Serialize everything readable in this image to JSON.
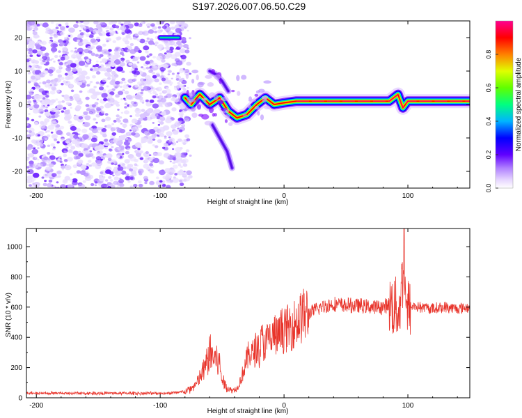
{
  "title": "S197.2026.007.06.50.C29",
  "chart_data": [
    {
      "type": "heatmap",
      "name": "spectrogram",
      "xlabel": "Height of straight line (km)",
      "ylabel": "Frequency (Hz)",
      "xlim": [
        -208,
        150
      ],
      "ylim": [
        -25,
        25
      ],
      "xticks": [
        -200,
        -100,
        0,
        100
      ],
      "yticks": [
        -20,
        -10,
        0,
        10,
        20
      ],
      "colorbar": {
        "label": "Normalized spectral amplitude",
        "range": [
          0,
          1
        ],
        "ticks": [
          "0.0",
          "0.2",
          "0.4",
          "0.6",
          "0.8"
        ],
        "colors": [
          "#ffffff",
          "#d4b3ff",
          "#7a00ff",
          "#0000ff",
          "#00c8ff",
          "#00ff60",
          "#c8ff00",
          "#ff9000",
          "#ff0000",
          "#ff0090"
        ]
      },
      "features": {
        "noise_region_x": [
          -208,
          -80
        ],
        "signal_track": [
          [
            -80,
            2
          ],
          [
            -75,
            0
          ],
          [
            -68,
            3
          ],
          [
            -60,
            0
          ],
          [
            -52,
            2
          ],
          [
            -45,
            -2
          ],
          [
            -38,
            -4
          ],
          [
            -30,
            -3
          ],
          [
            -22,
            0
          ],
          [
            -15,
            2
          ],
          [
            -8,
            0
          ],
          [
            0,
            0.5
          ],
          [
            10,
            1
          ],
          [
            30,
            1
          ],
          [
            60,
            1
          ],
          [
            85,
            1
          ],
          [
            92,
            3
          ],
          [
            96,
            -1
          ],
          [
            100,
            1
          ],
          [
            120,
            1
          ],
          [
            150,
            1
          ]
        ],
        "secondary_tracks": [
          [
            [
              -60,
              10
            ],
            [
              -55,
              9
            ],
            [
              -50,
              7
            ],
            [
              -45,
              4
            ]
          ],
          [
            [
              -58,
              -6
            ],
            [
              -52,
              -10
            ],
            [
              -46,
              -14
            ],
            [
              -42,
              -19
            ]
          ],
          [
            [
              -100,
              20
            ],
            [
              -85,
              20
            ]
          ]
        ]
      }
    },
    {
      "type": "line",
      "name": "snr",
      "xlabel": "Height of straight line (km)",
      "ylabel": "SNR (10 * v/v)",
      "xlim": [
        -208,
        150
      ],
      "ylim": [
        0,
        1120
      ],
      "xticks": [
        -200,
        -100,
        0,
        100
      ],
      "yticks": [
        0,
        200,
        400,
        600,
        800,
        1000
      ],
      "color": "#e8332a",
      "series": [
        {
          "name": "SNR",
          "x": [
            -208,
            -180,
            -150,
            -120,
            -100,
            -90,
            -80,
            -75,
            -70,
            -65,
            -62,
            -60,
            -58,
            -55,
            -52,
            -50,
            -48,
            -45,
            -42,
            -40,
            -38,
            -35,
            -32,
            -30,
            -28,
            -25,
            -22,
            -20,
            -18,
            -15,
            -12,
            -10,
            -8,
            -5,
            -2,
            0,
            5,
            10,
            15,
            20,
            25,
            30,
            40,
            50,
            60,
            70,
            80,
            85,
            90,
            93,
            95,
            96,
            97,
            98,
            99,
            100,
            102,
            105,
            110,
            120,
            130,
            140,
            150
          ],
          "y": [
            30,
            30,
            30,
            30,
            30,
            32,
            40,
            60,
            100,
            180,
            240,
            300,
            280,
            250,
            220,
            120,
            90,
            60,
            50,
            55,
            60,
            120,
            200,
            250,
            300,
            290,
            340,
            310,
            380,
            350,
            400,
            370,
            430,
            390,
            450,
            440,
            470,
            500,
            540,
            560,
            580,
            600,
            620,
            610,
            610,
            600,
            600,
            620,
            600,
            580,
            700,
            900,
            1050,
            800,
            520,
            590,
            600,
            610,
            600,
            590,
            600,
            590,
            600
          ]
        }
      ]
    }
  ]
}
